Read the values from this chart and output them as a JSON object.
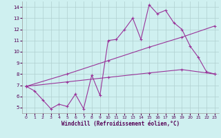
{
  "title": "",
  "xlabel": "Windchill (Refroidissement éolien,°C)",
  "bg_color": "#cff0f0",
  "line_color": "#993399",
  "grid_color": "#b0d0d0",
  "xlim": [
    -0.5,
    23.5
  ],
  "ylim": [
    4.5,
    14.5
  ],
  "yticks": [
    5,
    6,
    7,
    8,
    9,
    10,
    11,
    12,
    13,
    14
  ],
  "xticks": [
    0,
    1,
    2,
    3,
    4,
    5,
    6,
    7,
    8,
    9,
    10,
    11,
    12,
    13,
    14,
    15,
    16,
    17,
    18,
    19,
    20,
    21,
    22,
    23
  ],
  "series1_x": [
    0,
    1,
    2,
    3,
    4,
    5,
    6,
    7,
    8,
    9,
    10,
    11,
    12,
    13,
    14,
    15,
    16,
    17,
    18,
    19,
    20,
    21,
    22,
    23
  ],
  "series1_y": [
    6.9,
    6.5,
    5.7,
    4.9,
    5.3,
    5.1,
    6.2,
    4.9,
    7.9,
    6.1,
    11.0,
    11.1,
    12.0,
    13.0,
    11.1,
    14.2,
    13.4,
    13.7,
    12.6,
    12.0,
    10.5,
    9.5,
    8.2,
    8.0
  ],
  "series2_x": [
    0,
    5,
    10,
    15,
    19,
    23
  ],
  "series2_y": [
    6.9,
    8.0,
    9.2,
    10.4,
    11.3,
    12.3
  ],
  "series3_x": [
    0,
    5,
    10,
    15,
    19,
    23
  ],
  "series3_y": [
    6.9,
    7.3,
    7.7,
    8.1,
    8.4,
    8.0
  ],
  "marker": "+"
}
